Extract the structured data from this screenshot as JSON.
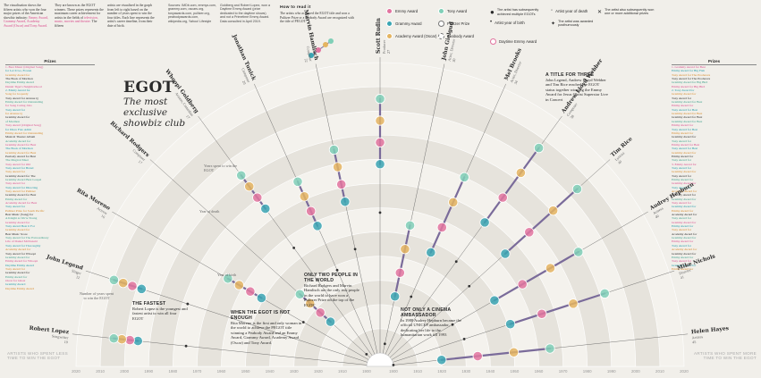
{
  "intro": {
    "col1": "The visualisation shows the fifteen artists who won the four major prizes of the American showbiz industry:",
    "col1_emph": "Emmy Award, Grammy Award, Academy Award (Oscar) and Tony Award.",
    "col2": "They are known as the EGOT winners. These prizes represents the maximum career achievement for artists in the fields of",
    "col2_emph": "television, music, movies and theatre.",
    "col2_end": "The fifteen",
    "col3": "artists are visualised in the graph from left to right based on the number of years spent to win the four titles. Each line represents the artist's career timeline, from their date of birth.",
    "col4": "Sources: IMDb.com, emmys.com, grammy.com, oscars.org, tonyawards.com, pulitzer.org, peabodyawards.com, wikipedia.org, Yahoo! Lifestyle",
    "col5": "Goldberg and Robert Lopez, won a Daytime Emmy Award (prize dedicated to the daytime shows) and not a Primetime Emmy Award. Data consulted in April 2019."
  },
  "how_to": {
    "heading": "How to read it",
    "text": "The artists who achieved the EGOT title and won a Pulitzer Prize or a Peabody Award are recognized with the title of PEGOT."
  },
  "legend": {
    "emmy": "Emmy Award",
    "grammy": "Grammy Award",
    "academy": "Academy Award (Oscar)",
    "tony": "Tony Award",
    "pulitzer": "Pulitzer Prize",
    "peabody": "Peabody Award",
    "subsequent": "The artist has subsequently achieved multiple EGOTs",
    "birth": "Artist year of birth",
    "death": "Artist year of death",
    "awarded": "The artist was awarded posthumously",
    "more": "The artist also subsequently won one or more additional prizes",
    "daytime": "Daytime Emmy Award"
  },
  "colors": {
    "emmy": "#e2749f",
    "grammy": "#3aa5b3",
    "academy": "#e4b460",
    "tony": "#7fcfb7",
    "pulitzer": "#ffffff",
    "peabody": "#ffffff",
    "line": "#7a6b9a",
    "ring": "#d8d5ce"
  },
  "title": "EGOT",
  "subtitle": "The most exclusive showbiz club",
  "left_prizes_head": "Prizes",
  "right_prizes_head": "Prizes",
  "left_prizes": [
    "1. Best Music (Original Song)",
    "for Let It Go, Frozen",
    "Grammy Award for",
    "The Book of Mormon",
    "Daytime Emmy Award",
    "Daniel Tiger's Neighborhood",
    "2. Emmy Award for",
    "Song for Jeopardy",
    "Tony Award for Avenue Q",
    "Emmy Award for Outstanding",
    "for Song Caring Jobs",
    "Tony Award for",
    "for Avenue Q",
    "Grammy Award for",
    "of Mormon",
    "Tony Award (Original Song)",
    "for Disco Fato Admi",
    "Emmy Award for Outstanding",
    "Musical Theater Album",
    "Academy Award for",
    "Grammy Award for Best",
    "The Book of Mormon",
    "Grammy Award for Best",
    "Peabody Award for Best",
    "The Magical Meet",
    "Tony Award for Old",
    "Tony Award for Brand",
    "Tony Award for",
    "Grammy Award for The",
    "Grammy Award Best Gospel",
    "Tony Award for",
    "Tony Award for Directing",
    "Tony Award for Pulitzer",
    "Grammy Award for Best",
    "Emmy Award for",
    "Academy Award for Best",
    "Tony Award for",
    "Pulitzer Prize for South Pacific",
    "Best Music (Song) for",
    "A Knight as We're Young",
    "Grammy Award for",
    "Tony Award Beat it For",
    "Grammy Award for",
    "Best Music Score",
    "Tony Award for The Extraordinary",
    "Life of Daniel McDonald",
    "Tony Award for Thoroughly",
    "Academy Award for",
    "Tony Award for Whoopi",
    "Grammy Award for",
    "Emmy Award for Whoopi",
    "Daytime Emmy Award",
    "Tony Award for",
    "Grammy Award for",
    "Emmy Award for",
    "Oscar for Ghost",
    "Grammy Award",
    "Daytime Emmy Award"
  ],
  "right_prizes": [
    "1. Grammy Award for Best",
    "Emmy Award for Big Fish",
    "Tony Award for The Producers",
    "Tony Award for The Producers",
    "Grammy Award for Big Bird",
    "Emmy Award for Big Bird",
    "2. Tony Award for",
    "Grammy Award for",
    "Tony Award for",
    "Grammy Award for Best",
    "Emmy Award for",
    "Tony Award for Best",
    "Grammy Award for Best",
    "Grammy Award for Best",
    "Grammy Award for Best",
    "Emmy Award for",
    "Tony Award for Best",
    "Emmy Award for",
    "Grammy Award for",
    "Tony Award for",
    "Emmy Award for Best",
    "Tony Award for Best",
    "Grammy Award for",
    "Emmy Award for",
    "Tony Award for",
    "3. Emmy Award for",
    "Tony Award for",
    "Grammy Award for",
    "Tony Award for",
    "Emmy Award for",
    "Grammy Award for",
    "Tony Award for",
    "Academy Award for",
    "Peabody Award for",
    "Grammy Award for",
    "Tony Award for",
    "Grammy Award for",
    "Emmy Award for",
    "Academy Award for",
    "Tony Award for",
    "Grammy Award for",
    "Emmy Award for",
    "Tony Award for",
    "Academy Award for",
    "Grammy Award for",
    "Emmy Award for",
    "Tony Award for",
    "Academy Award for",
    "Grammy Award for",
    "Emmy Award for",
    "Tony Award for",
    "Grammy Award for",
    "Emmy Award for"
  ],
  "annotations": {
    "three_title": "A TITLE FOR THREE",
    "three_text": "John Legend, Andrew Lloyd Webber and Tim Rice reached the EGOT status together winning the Emmy Award for Jesus Christ Superstar Live in Concert",
    "fastest_title": "THE FASTEST",
    "fastest_text": "Robert Lopez is the youngest and fastest artist to win all four EGOT",
    "pegot_title": "WHEN THE EGOT IS NOT ENOUGH",
    "pegot_text": "Rita Moreno is the first and only woman in the world to achieve the PEGOT title winning a Peabody Award and an Emmy Award, Grammy Award, Academy Award (Oscar) and Tony Award.",
    "two_title": "ONLY TWO PEOPLE IN THE WORLD",
    "two_text": "Richard Rodgers and Marvin Hamlisch are the only two people in the world to have won a Pulitzer Prize on the top of the EGOT",
    "cinema_title": "NOT ONLY A CINEMA AMBASSADOR",
    "cinema_text": "In 1988 Audrey Hepburn became the official UNICEF ambassador, dedicating her life to the humanitarian work till 1993",
    "years_spent": "Years spent to win the EGOT",
    "number_years": "Number of years spent to win the EGOT",
    "year_death": "Year of death",
    "year_birth": "Year of birth",
    "left_bottom": "ARTISTS WHO SPENT LESS TIME TO WIN THE EGOT",
    "right_bottom": "ARTISTS WHO SPENT MORE TIME TO WIN THE EGOT"
  },
  "chart_data": {
    "type": "scatter",
    "title": "EGOT",
    "subtitle": "The most exclusive showbiz club",
    "x_axis_years": [
      "2020",
      "2010",
      "2000",
      "1990",
      "1980",
      "1970",
      "1960",
      "1950",
      "1940",
      "1930",
      "1920",
      "1910",
      "1900",
      "1900",
      "1910",
      "1920",
      "1930",
      "1940",
      "1950",
      "1960",
      "1970",
      "1980",
      "1990",
      "2000",
      "2010",
      "2020"
    ],
    "artists": [
      {
        "name": "Robert Lopez",
        "role": "Songwriter",
        "years": 10,
        "birth": 1975
      },
      {
        "name": "John Legend",
        "role": "Singer",
        "years": 12,
        "birth": 1978
      },
      {
        "name": "Rita Moreno",
        "role": "Actress",
        "years": 16,
        "birth": 1931
      },
      {
        "name": "Richard Rodgers",
        "role": "Composer",
        "years": 17,
        "birth": 1902
      },
      {
        "name": "Whoopi Goldberg",
        "role": "Actress, Comedian",
        "years": 17,
        "birth": 1955
      },
      {
        "name": "Jonathan Tunick",
        "role": "Composer",
        "years": 20,
        "birth": 1938
      },
      {
        "name": "Marvin Hamlisch",
        "role": "Composer",
        "years": 22,
        "birth": 1944
      },
      {
        "name": "Scott Rudin",
        "role": "Producer",
        "years": 27,
        "birth": 1958
      },
      {
        "name": "John Gielgud",
        "role": "Actor, Director",
        "years": 30,
        "birth": 1904
      },
      {
        "name": "Mel Brooks",
        "role": "Actor, Director",
        "years": 34,
        "birth": 1926
      },
      {
        "name": "Andrew Lloyd Webber",
        "role": "Composer",
        "years": 38,
        "birth": 1948
      },
      {
        "name": "Tim Rice",
        "role": "Lyricist",
        "years": 40,
        "birth": 1944
      },
      {
        "name": "Audrey Hepburn",
        "role": "Actress",
        "years": 40,
        "birth": 1929
      },
      {
        "name": "Mike Nichols",
        "role": "Director",
        "years": 41,
        "birth": 1931
      },
      {
        "name": "Helen Hayes",
        "role": "Actress",
        "years": 45,
        "birth": 1900
      }
    ]
  }
}
